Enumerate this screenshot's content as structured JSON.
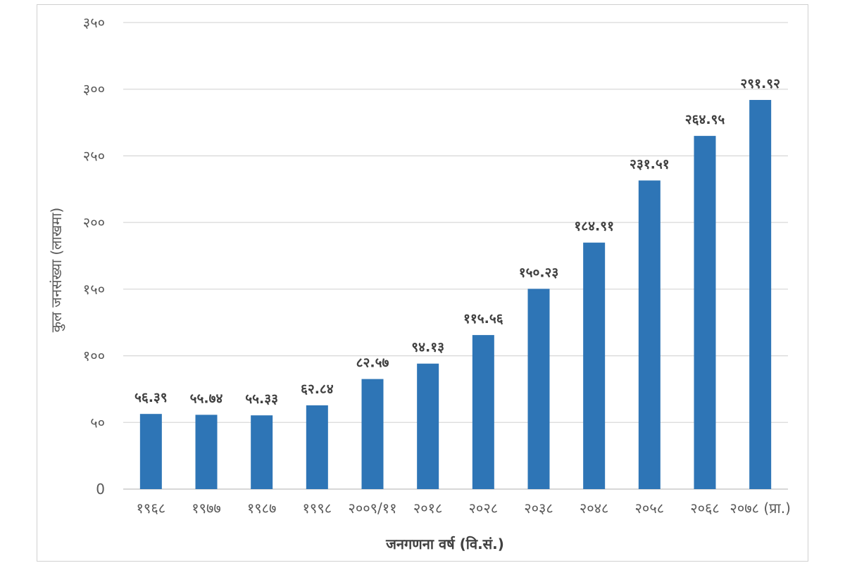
{
  "chart_data": {
    "type": "bar",
    "categories": [
      "१९६८",
      "१९७७",
      "१९८७",
      "१९९८",
      "२००९/११",
      "२०१८",
      "२०२८",
      "२०३८",
      "२०४८",
      "२०५८",
      "२०६८",
      "२०७८ (प्रा.)"
    ],
    "values": [
      56.39,
      55.74,
      55.33,
      62.84,
      82.57,
      94.13,
      115.56,
      150.23,
      184.91,
      231.51,
      264.95,
      291.92
    ],
    "data_labels": [
      "५६.३९",
      "५५.७४",
      "५५.३३",
      "६२.८४",
      "८२.५७",
      "९४.१३",
      "११५.५६",
      "१५०.२३",
      "१८४.९१",
      "२३१.५१",
      "२६४.९५",
      "२९१.९२"
    ],
    "xlabel": "जनगणना वर्ष (वि.सं.)",
    "ylabel": "कुल जनसंख्या (लाखमा)",
    "ylim": [
      0,
      350
    ],
    "y_ticks": [
      0,
      50,
      100,
      150,
      200,
      250,
      300,
      350
    ],
    "y_tick_labels": [
      "0",
      "५०",
      "१००",
      "१५०",
      "२००",
      "२५०",
      "३००",
      "३५०"
    ],
    "grid": true,
    "legend": "none",
    "bar_color": "#2e75b6"
  }
}
